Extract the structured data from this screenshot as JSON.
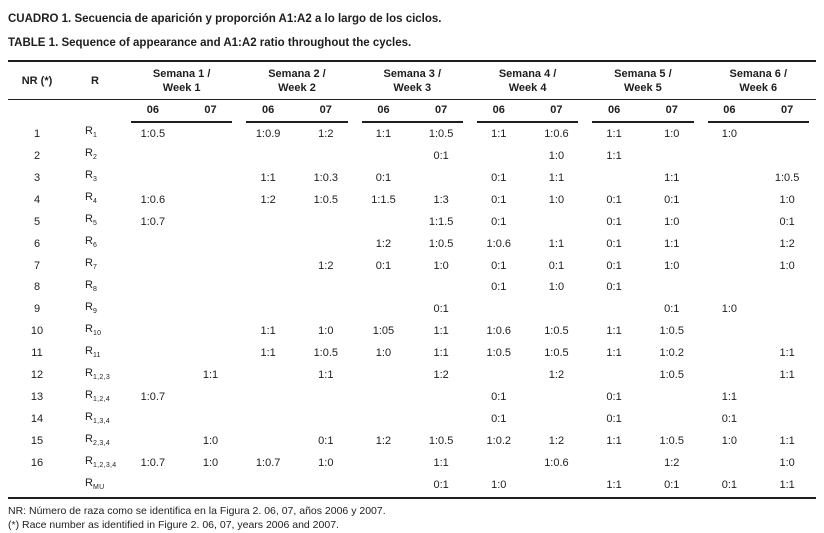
{
  "titles": {
    "es": "CUADRO 1. Secuencia de aparición y proporción A1:A2 a lo largo de los ciclos.",
    "en": "TABLE 1. Sequence of appearance and A1:A2 ratio throughout the cycles."
  },
  "table": {
    "nr_header": "NR (*)",
    "r_header": "R",
    "year_cols": [
      "06",
      "07"
    ],
    "weeks": [
      {
        "es": "Semana 1 /",
        "en": "Week 1"
      },
      {
        "es": "Semana 2 /",
        "en": "Week 2"
      },
      {
        "es": "Semana 3 /",
        "en": "Week 3"
      },
      {
        "es": "Semana 4 /",
        "en": "Week 4"
      },
      {
        "es": "Semana 5 /",
        "en": "Week 5"
      },
      {
        "es": "Semana 6 /",
        "en": "Week 6"
      }
    ],
    "rows": [
      {
        "nr": "1",
        "race": {
          "base": "R",
          "sub": "1"
        },
        "values": [
          "1:0.5",
          "",
          "1:0.9",
          "1:2",
          "1:1",
          "1:0.5",
          "1:1",
          "1:0.6",
          "1:1",
          "1:0",
          "1:0",
          ""
        ]
      },
      {
        "nr": "2",
        "race": {
          "base": "R",
          "sub": "2"
        },
        "values": [
          "",
          "",
          "",
          "",
          "",
          "0:1",
          "",
          "1:0",
          "1:1",
          "",
          "",
          ""
        ]
      },
      {
        "nr": "3",
        "race": {
          "base": "R",
          "sub": "3"
        },
        "values": [
          "",
          "",
          "1:1",
          "1:0.3",
          "0:1",
          "",
          "0:1",
          "1:1",
          "",
          "1:1",
          "",
          "1:0.5"
        ]
      },
      {
        "nr": "4",
        "race": {
          "base": "R",
          "sub": "4"
        },
        "values": [
          "1:0.6",
          "",
          "1:2",
          "1:0.5",
          "1:1.5",
          "1:3",
          "0:1",
          "1:0",
          "0:1",
          "0:1",
          "",
          "1:0"
        ]
      },
      {
        "nr": "5",
        "race": {
          "base": "R",
          "sub": "5"
        },
        "values": [
          "1:0.7",
          "",
          "",
          "",
          "",
          "1:1.5",
          "0:1",
          "",
          "0:1",
          "1:0",
          "",
          "0:1"
        ]
      },
      {
        "nr": "6",
        "race": {
          "base": "R",
          "sub": "6"
        },
        "values": [
          "",
          "",
          "",
          "",
          "1:2",
          "1:0.5",
          "1:0.6",
          "1:1",
          "0:1",
          "1:1",
          "",
          "1:2"
        ]
      },
      {
        "nr": "7",
        "race": {
          "base": "R",
          "sub": "7"
        },
        "values": [
          "",
          "",
          "",
          "1:2",
          "0:1",
          "1:0",
          "0:1",
          "0:1",
          "0:1",
          "1:0",
          "",
          "1:0"
        ]
      },
      {
        "nr": "8",
        "race": {
          "base": "R",
          "sub": "8"
        },
        "values": [
          "",
          "",
          "",
          "",
          "",
          "",
          "0:1",
          "1:0",
          "0:1",
          "",
          "",
          ""
        ]
      },
      {
        "nr": "9",
        "race": {
          "base": "R",
          "sub": "9"
        },
        "values": [
          "",
          "",
          "",
          "",
          "",
          "0:1",
          "",
          "",
          "",
          "0:1",
          "1:0",
          ""
        ]
      },
      {
        "nr": "10",
        "race": {
          "base": "R",
          "sub": "10"
        },
        "values": [
          "",
          "",
          "1:1",
          "1:0",
          "1:05",
          "1:1",
          "1:0.6",
          "1:0.5",
          "1:1",
          "1:0.5",
          "",
          ""
        ]
      },
      {
        "nr": "11",
        "race": {
          "base": "R",
          "sub": "11"
        },
        "values": [
          "",
          "",
          "1:1",
          "1:0.5",
          "1:0",
          "1:1",
          "1:0.5",
          "1:0.5",
          "1:1",
          "1:0.2",
          "",
          "1:1"
        ]
      },
      {
        "nr": "12",
        "race": {
          "base": "R",
          "sub": "1,2,3"
        },
        "values": [
          "",
          "1:1",
          "",
          "1:1",
          "",
          "1:2",
          "",
          "1:2",
          "",
          "1:0.5",
          "",
          "1:1"
        ]
      },
      {
        "nr": "13",
        "race": {
          "base": "R",
          "sub": "1,2,4"
        },
        "values": [
          "1:0.7",
          "",
          "",
          "",
          "",
          "",
          "0:1",
          "",
          "0:1",
          "",
          "1:1",
          ""
        ]
      },
      {
        "nr": "14",
        "race": {
          "base": "R",
          "sub": "1,3,4"
        },
        "values": [
          "",
          "",
          "",
          "",
          "",
          "",
          "0:1",
          "",
          "0:1",
          "",
          "0:1",
          ""
        ]
      },
      {
        "nr": "15",
        "race": {
          "base": "R",
          "sub": "2,3,4"
        },
        "values": [
          "",
          "1:0",
          "",
          "0:1",
          "1:2",
          "1:0.5",
          "1:0.2",
          "1:2",
          "1:1",
          "1:0.5",
          "1:0",
          "1:1"
        ]
      },
      {
        "nr": "16",
        "race": {
          "base": "R",
          "sub": "1,2,3,4"
        },
        "values": [
          "1:0.7",
          "1:0",
          "1:0.7",
          "1:0",
          "",
          "1:1",
          "",
          "1:0.6",
          "",
          "1:2",
          "",
          "1:0"
        ]
      },
      {
        "nr": "",
        "race": {
          "base": "R",
          "sub": "MU"
        },
        "values": [
          "",
          "",
          "",
          "",
          "",
          "0:1",
          "1:0",
          "",
          "1:1",
          "0:1",
          "0:1",
          "1:1"
        ]
      }
    ]
  },
  "footnotes": {
    "es": "NR: Número de raza como se identifica en la Figura 2. 06, 07, años 2006 y 2007.",
    "en": "(*) Race number as identified in Figure 2. 06, 07, years 2006 and 2007."
  },
  "colors": {
    "text": "#1e1e1e",
    "line": "#1e1e1e",
    "background": "#ffffff"
  }
}
